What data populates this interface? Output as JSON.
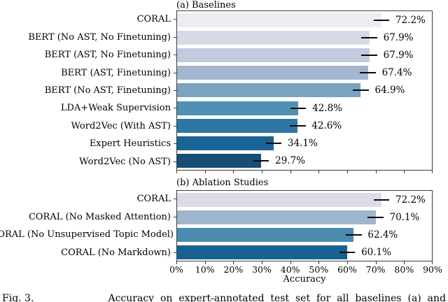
{
  "figure": {
    "caption_lead": "Fig. 3.",
    "caption_body": "Accuracy  on  expert-annotated  test  set  for  all  baselines  (a)  and",
    "xlabel": "Accuracy",
    "x_tick_labels": [
      "0%",
      "10%",
      "20%",
      "30%",
      "40%",
      "50%",
      "60%",
      "70%",
      "80%",
      "90%"
    ],
    "axis_color": "#3a3a3a",
    "error_bar_color": "#0a0a0a"
  },
  "chart_data": [
    {
      "type": "bar",
      "orientation": "horizontal",
      "title": "(a) Baselines",
      "categories": [
        "CORAL",
        "BERT (No AST, No Finetuning)",
        "BERT (AST, No Finetuning)",
        "BERT (AST, Finetuning)",
        "BERT (No AST, Finetuning)",
        "LDA+Weak Supervision",
        "Word2Vec (With AST)",
        "Expert Heuristics",
        "Word2Vec (No AST)"
      ],
      "values": [
        72.2,
        67.9,
        67.9,
        67.4,
        64.9,
        42.8,
        42.6,
        34.1,
        29.7
      ],
      "value_labels": [
        "72.2%",
        "67.9%",
        "67.9%",
        "67.4%",
        "64.9%",
        "42.8%",
        "42.6%",
        "34.1%",
        "29.7%"
      ],
      "error": 2.8,
      "bar_colors": [
        "#ececf4",
        "#d8d9e7",
        "#c4cade",
        "#a2b6cf",
        "#7aa3c1",
        "#5090b4",
        "#2e76a3",
        "#1a6395",
        "#174e74"
      ],
      "xlim": [
        0,
        90
      ],
      "xlabel": "Accuracy",
      "x_tick_labels_shown": false,
      "grid": false,
      "legend": "none"
    },
    {
      "type": "bar",
      "orientation": "horizontal",
      "title": "(b) Ablation Studies",
      "categories": [
        "CORAL",
        "CORAL (No Masked Attention)",
        "CORAL (No Unsupervised Topic Model)",
        "CORAL (No Markdown)"
      ],
      "values": [
        72.2,
        70.1,
        62.4,
        60.1
      ],
      "value_labels": [
        "72.2%",
        "70.1%",
        "62.4%",
        "60.1%"
      ],
      "error": 2.8,
      "bar_colors": [
        "#dcdce9",
        "#9fb5ce",
        "#4c8bb0",
        "#16618f"
      ],
      "xlim": [
        0,
        90
      ],
      "xlabel": "Accuracy",
      "x_tick_labels_shown": true,
      "grid": false,
      "legend": "none"
    }
  ]
}
